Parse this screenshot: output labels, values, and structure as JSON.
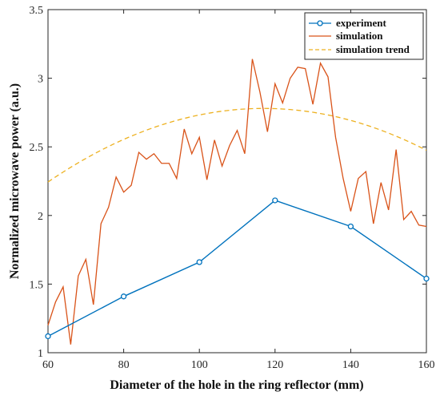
{
  "chart_data": {
    "type": "line",
    "xlabel": "Diameter  of the  hole  in the ring reflector (mm)",
    "ylabel": "Normalized  microwave power (a.u.)",
    "xlim": [
      60,
      160
    ],
    "ylim": [
      1,
      3.5
    ],
    "xticks": [
      60,
      80,
      100,
      120,
      140,
      160
    ],
    "xtick_labels": [
      "60",
      "80",
      "100",
      "120",
      "140",
      "160"
    ],
    "yticks": [
      1,
      1.5,
      2,
      2.5,
      3,
      3.5
    ],
    "ytick_labels": [
      "1",
      "1.5",
      "2",
      "2.5",
      "3",
      "3.5"
    ],
    "grid": false,
    "legend_position": "top-right",
    "series": [
      {
        "name": "experiment",
        "color": "#0072BD",
        "style": "solid-marker-circle",
        "x": [
          60,
          80,
          100,
          120,
          140,
          160
        ],
        "y": [
          1.12,
          1.41,
          1.66,
          2.11,
          1.92,
          1.54
        ]
      },
      {
        "name": "simulation",
        "color": "#D95319",
        "style": "solid",
        "x": [
          60,
          62,
          64,
          66,
          68,
          70,
          72,
          74,
          76,
          78,
          80,
          82,
          84,
          86,
          88,
          90,
          92,
          94,
          96,
          98,
          100,
          102,
          104,
          106,
          108,
          110,
          112,
          114,
          116,
          118,
          120,
          122,
          124,
          126,
          128,
          130,
          132,
          134,
          136,
          138,
          140,
          142,
          144,
          146,
          148,
          150,
          152,
          154,
          156,
          158,
          160
        ],
        "y": [
          1.2,
          1.37,
          1.48,
          1.06,
          1.56,
          1.68,
          1.35,
          1.94,
          2.06,
          2.28,
          2.17,
          2.22,
          2.46,
          2.41,
          2.45,
          2.38,
          2.38,
          2.27,
          2.63,
          2.45,
          2.57,
          2.26,
          2.55,
          2.36,
          2.51,
          2.62,
          2.45,
          3.14,
          2.9,
          2.61,
          2.96,
          2.82,
          3.0,
          3.08,
          3.07,
          2.81,
          3.11,
          3.01,
          2.57,
          2.27,
          2.03,
          2.27,
          2.32,
          1.94,
          2.24,
          2.04,
          2.48,
          1.97,
          2.03,
          1.93,
          1.92
        ]
      },
      {
        "name": "simulation trend",
        "color": "#EDB120",
        "style": "dashed",
        "trend": {
          "a": -0.000165,
          "vertex_x": 117,
          "vertex_y": 2.78
        },
        "x_range": [
          60,
          160
        ]
      }
    ]
  }
}
